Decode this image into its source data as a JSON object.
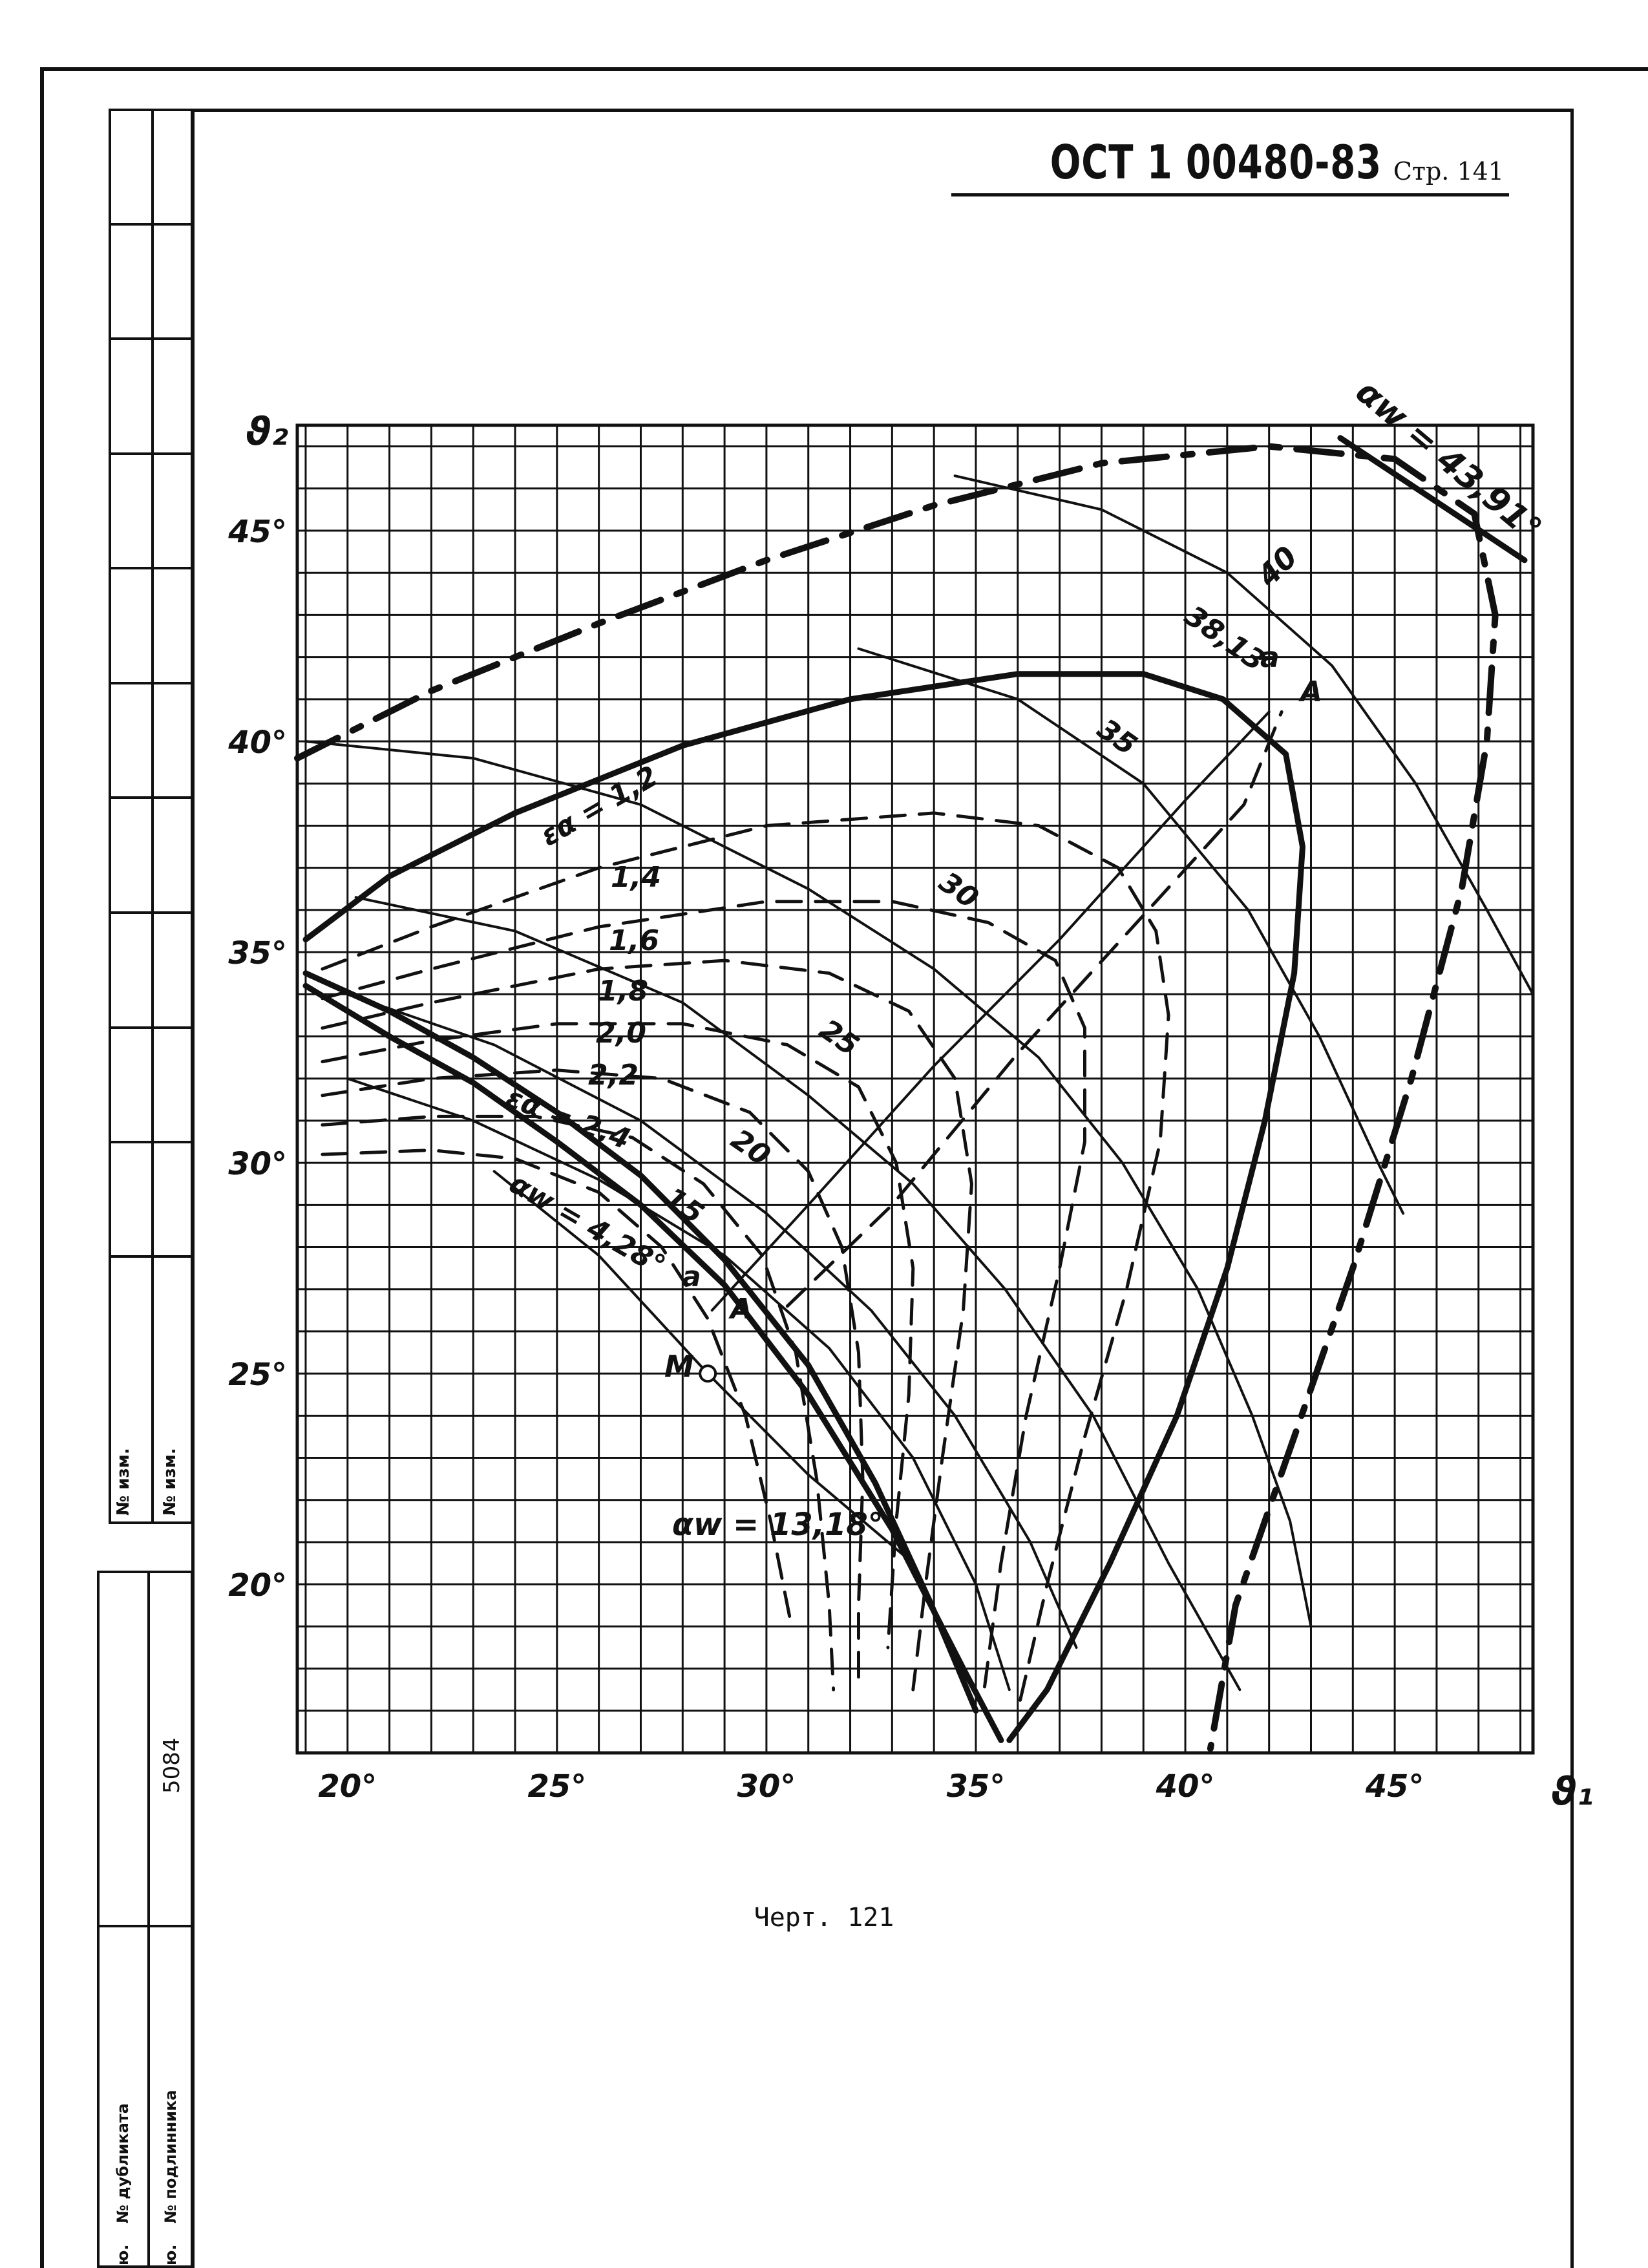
{
  "header": {
    "standard": "ОСТ 1 00480-83",
    "page_label": "Стр. 141"
  },
  "figure_caption": "Черт. 121",
  "left_strip": {
    "izm_1": "№ изм.",
    "izm_2": "№ изм.",
    "dublikat": "№ дубликата",
    "podlinnik": "№ подлинника",
    "number": "5084",
    "prefix_1": "ю.",
    "prefix_2": "ю."
  },
  "chart_data": {
    "type": "line",
    "xlabel": "ϑ₁",
    "ylabel": "ϑ₂",
    "x_ticks": [
      "20°",
      "25°",
      "30°",
      "35°",
      "40°",
      "45°"
    ],
    "y_ticks": [
      "20°",
      "25°",
      "30°",
      "35°",
      "40°",
      "45°"
    ],
    "xlim": [
      18.8,
      48.3
    ],
    "ylim": [
      16,
      47.5
    ],
    "grid": true,
    "annotations": [
      "αw = 43,91°",
      "40",
      "38,13",
      "a",
      "A",
      "35",
      "30",
      "25",
      "20",
      "15",
      "εα = 1,2",
      "1,4",
      "1,6",
      "1,8",
      "2,0",
      "2,2",
      "εα = 2,4",
      "αw = 4,28°",
      "a",
      "A",
      "M",
      "αw = 13,18°"
    ],
    "series": [
      {
        "name": "αw = 43,91°",
        "style": "dash-dot heavy",
        "points": [
          [
            18.8,
            39.6
          ],
          [
            22,
            41.2
          ],
          [
            26,
            42.8
          ],
          [
            30,
            44.3
          ],
          [
            34,
            45.6
          ],
          [
            38,
            46.6
          ],
          [
            42,
            47.0
          ],
          [
            45,
            46.7
          ],
          [
            46.9,
            45.4
          ],
          [
            47.4,
            43.0
          ],
          [
            47.2,
            40.0
          ],
          [
            46.6,
            36.5
          ],
          [
            45.4,
            32.0
          ],
          [
            44.0,
            27.5
          ],
          [
            42.6,
            23.5
          ],
          [
            41.2,
            19.5
          ],
          [
            40.6,
            16.1
          ]
        ]
      },
      {
        "name": "38,13 a",
        "style": "solid heavy",
        "points": [
          [
            19.0,
            35.3
          ],
          [
            21,
            36.8
          ],
          [
            24,
            38.3
          ],
          [
            28,
            39.9
          ],
          [
            32,
            41.0
          ],
          [
            36,
            41.6
          ],
          [
            39.0,
            41.6
          ],
          [
            40.9,
            41.0
          ],
          [
            42.4,
            39.7
          ],
          [
            42.8,
            37.5
          ],
          [
            42.6,
            34.5
          ],
          [
            41.9,
            31.0
          ],
          [
            41.0,
            27.5
          ],
          [
            39.8,
            24.0
          ],
          [
            38.2,
            20.5
          ],
          [
            36.7,
            17.5
          ],
          [
            35.8,
            16.3
          ]
        ]
      },
      {
        "name": "εα = 1,2",
        "style": "dashed",
        "points": [
          [
            19.4,
            34.6
          ],
          [
            22,
            35.6
          ],
          [
            26,
            37.0
          ],
          [
            30,
            38.0
          ],
          [
            34,
            38.3
          ],
          [
            36.5,
            38.0
          ],
          [
            38.4,
            37.0
          ],
          [
            39.3,
            35.5
          ],
          [
            39.6,
            33.5
          ],
          [
            39.4,
            30.5
          ],
          [
            38.6,
            27.0
          ],
          [
            37.6,
            23.5
          ],
          [
            36.7,
            20.0
          ],
          [
            36.0,
            17.0
          ]
        ]
      },
      {
        "name": "1,4",
        "style": "dashed",
        "points": [
          [
            19.4,
            33.9
          ],
          [
            22,
            34.6
          ],
          [
            26,
            35.6
          ],
          [
            30,
            36.2
          ],
          [
            33,
            36.2
          ],
          [
            35.3,
            35.7
          ],
          [
            36.9,
            34.8
          ],
          [
            37.6,
            33.2
          ],
          [
            37.6,
            30.5
          ],
          [
            37.0,
            27.5
          ],
          [
            36.2,
            24.0
          ],
          [
            35.6,
            20.5
          ],
          [
            35.2,
            17.5
          ]
        ]
      },
      {
        "name": "1,6",
        "style": "dashed",
        "points": [
          [
            19.4,
            33.2
          ],
          [
            22,
            33.8
          ],
          [
            26,
            34.6
          ],
          [
            29,
            34.8
          ],
          [
            31.5,
            34.5
          ],
          [
            33.4,
            33.6
          ],
          [
            34.5,
            32.0
          ],
          [
            34.9,
            29.5
          ],
          [
            34.7,
            26.5
          ],
          [
            34.2,
            23.0
          ],
          [
            33.8,
            20.0
          ],
          [
            33.5,
            17.5
          ]
        ]
      },
      {
        "name": "1,8",
        "style": "dashed",
        "points": [
          [
            19.4,
            32.4
          ],
          [
            22,
            32.9
          ],
          [
            25,
            33.3
          ],
          [
            28,
            33.3
          ],
          [
            30.5,
            32.8
          ],
          [
            32.2,
            31.8
          ],
          [
            33.1,
            30.0
          ],
          [
            33.5,
            27.5
          ],
          [
            33.4,
            24.5
          ],
          [
            33.1,
            21.5
          ],
          [
            32.9,
            18.5
          ]
        ]
      },
      {
        "name": "2,0",
        "style": "dashed",
        "points": [
          [
            19.4,
            31.6
          ],
          [
            22,
            32.0
          ],
          [
            25,
            32.2
          ],
          [
            27.5,
            32.0
          ],
          [
            29.6,
            31.2
          ],
          [
            31.0,
            29.8
          ],
          [
            31.8,
            28.0
          ],
          [
            32.2,
            25.5
          ],
          [
            32.3,
            22.5
          ],
          [
            32.2,
            19.5
          ],
          [
            32.2,
            17.5
          ]
        ]
      },
      {
        "name": "2,2",
        "style": "dashed",
        "points": [
          [
            19.4,
            30.9
          ],
          [
            22,
            31.1
          ],
          [
            24.5,
            31.1
          ],
          [
            26.8,
            30.6
          ],
          [
            28.5,
            29.5
          ],
          [
            29.9,
            27.8
          ],
          [
            30.7,
            25.5
          ],
          [
            31.2,
            22.5
          ],
          [
            31.5,
            19.5
          ],
          [
            31.6,
            17.5
          ]
        ]
      },
      {
        "name": "εα = 2,4",
        "style": "dashed",
        "points": [
          [
            19.4,
            30.2
          ],
          [
            22,
            30.3
          ],
          [
            24,
            30.1
          ],
          [
            26,
            29.3
          ],
          [
            27.5,
            28.0
          ],
          [
            28.6,
            26.3
          ],
          [
            29.5,
            24.0
          ],
          [
            30.1,
            21.5
          ],
          [
            30.6,
            19.0
          ]
        ]
      },
      {
        "name": "αw = 13,18°",
        "style": "solid heavy",
        "points": [
          [
            19.0,
            34.5
          ],
          [
            21,
            33.6
          ],
          [
            23,
            32.5
          ],
          [
            25,
            31.2
          ],
          [
            27,
            29.7
          ],
          [
            29,
            27.7
          ],
          [
            31,
            25.2
          ],
          [
            32.6,
            22.4
          ],
          [
            33.9,
            19.6
          ],
          [
            35.0,
            17.0
          ]
        ]
      },
      {
        "name": "αw = 4,28°",
        "style": "solid heavy",
        "points": [
          [
            19.0,
            34.2
          ],
          [
            21,
            33.0
          ],
          [
            23,
            31.9
          ],
          [
            25,
            30.5
          ],
          [
            27,
            29.0
          ],
          [
            29,
            27.1
          ],
          [
            31,
            24.5
          ],
          [
            33,
            21.3
          ],
          [
            34.7,
            18.0
          ],
          [
            35.6,
            16.3
          ]
        ]
      },
      {
        "name": "40",
        "style": "solid",
        "points": [
          [
            34.5,
            46.3
          ],
          [
            38,
            45.5
          ],
          [
            41,
            44.0
          ],
          [
            43.5,
            41.8
          ],
          [
            45.5,
            39.0
          ],
          [
            47.2,
            36.0
          ],
          [
            48.3,
            34.0
          ]
        ]
      },
      {
        "name": "35",
        "style": "solid",
        "points": [
          [
            32.2,
            42.2
          ],
          [
            36,
            41.0
          ],
          [
            39,
            39.0
          ],
          [
            41.5,
            36.0
          ],
          [
            43.2,
            33.0
          ],
          [
            44.6,
            30.0
          ],
          [
            45.2,
            28.8
          ]
        ]
      },
      {
        "name": "30",
        "style": "solid",
        "points": [
          [
            19.0,
            40.0
          ],
          [
            23,
            39.6
          ],
          [
            27,
            38.5
          ],
          [
            31,
            36.5
          ],
          [
            34,
            34.6
          ],
          [
            36.5,
            32.5
          ],
          [
            38.5,
            30.0
          ],
          [
            40.3,
            27.0
          ],
          [
            41.6,
            24.0
          ],
          [
            42.5,
            21.5
          ],
          [
            43.0,
            19.0
          ]
        ]
      },
      {
        "name": "25",
        "style": "solid",
        "points": [
          [
            20.2,
            36.3
          ],
          [
            24,
            35.5
          ],
          [
            28,
            33.8
          ],
          [
            31,
            31.6
          ],
          [
            33.5,
            29.5
          ],
          [
            35.7,
            27.0
          ],
          [
            37.8,
            24.0
          ],
          [
            39.6,
            20.5
          ],
          [
            41.3,
            17.5
          ]
        ]
      },
      {
        "name": "20",
        "style": "solid",
        "points": [
          [
            20.0,
            34.0
          ],
          [
            23.5,
            32.8
          ],
          [
            27,
            31.0
          ],
          [
            30,
            28.8
          ],
          [
            32.5,
            26.5
          ],
          [
            34.5,
            24.0
          ],
          [
            36.3,
            21.0
          ],
          [
            37.4,
            18.5
          ]
        ]
      },
      {
        "name": "15",
        "style": "solid",
        "points": [
          [
            20.0,
            32.0
          ],
          [
            23,
            31.0
          ],
          [
            26,
            29.6
          ],
          [
            29,
            27.8
          ],
          [
            31.5,
            25.6
          ],
          [
            33.5,
            23.0
          ],
          [
            35.0,
            20.0
          ],
          [
            35.8,
            17.5
          ]
        ]
      },
      {
        "name": "line a–A",
        "style": "solid",
        "points": [
          [
            28.7,
            26.5
          ],
          [
            31,
            29.0
          ],
          [
            34,
            32.3
          ],
          [
            37,
            35.3
          ],
          [
            40,
            38.6
          ],
          [
            42.0,
            40.7
          ]
        ]
      },
      {
        "name": "dash a–A",
        "style": "dashed",
        "points": [
          [
            30.5,
            26.6
          ],
          [
            33,
            29.0
          ],
          [
            36,
            32.6
          ],
          [
            39.3,
            36.2
          ],
          [
            41.4,
            38.5
          ],
          [
            42.3,
            40.7
          ]
        ]
      },
      {
        "name": "line through M",
        "style": "solid",
        "points": [
          [
            23.5,
            29.8
          ],
          [
            26,
            27.8
          ],
          [
            28.6,
            25.0
          ],
          [
            31,
            22.6
          ],
          [
            33.5,
            20.5
          ]
        ]
      },
      {
        "name": "αw = 43,91° bar",
        "style": "solid heavy",
        "points": [
          [
            43.7,
            47.2
          ],
          [
            48.1,
            44.3
          ]
        ]
      }
    ],
    "points": [
      {
        "label": "M",
        "x": 28.6,
        "y": 25.0
      }
    ]
  }
}
